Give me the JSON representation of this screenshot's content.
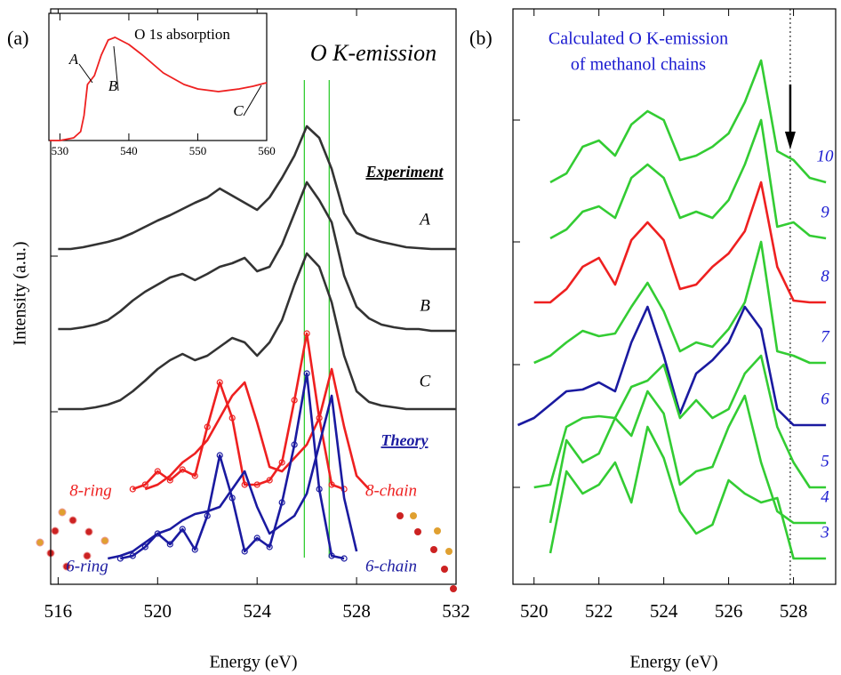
{
  "chart_data": [
    {
      "type": "line",
      "panel_label": "(a)",
      "title": "O K-emission",
      "x_label": "Energy (eV)",
      "y_label": "Intensity (a.u.)",
      "x": [
        516,
        516.5,
        517,
        517.5,
        518,
        518.5,
        519,
        519.5,
        520,
        520.5,
        521,
        521.5,
        522,
        522.5,
        523,
        523.5,
        524,
        524.5,
        525,
        525.5,
        526,
        526.5,
        527,
        527.5,
        528,
        528.5,
        529,
        529.5,
        530,
        530.5,
        531,
        531.5,
        532
      ],
      "xlim": [
        515.7,
        532
      ],
      "xticks": [
        516,
        520,
        524,
        528,
        532
      ],
      "ylim": [
        -27,
        620
      ],
      "yticks": [
        167,
        342,
        515
      ],
      "reference_lines": [
        525.9,
        526.9
      ],
      "reference_color": "#33cc33",
      "group_labels": [
        "Experiment",
        "Theory"
      ],
      "series": [
        {
          "name": "A",
          "color": "#333333",
          "values": [
            350,
            350,
            352,
            355,
            358,
            362,
            368,
            375,
            382,
            388,
            395,
            402,
            408,
            418,
            410,
            402,
            394,
            408,
            430,
            455,
            488,
            475,
            440,
            390,
            368,
            362,
            358,
            355,
            352,
            351,
            350,
            350,
            350
          ]
        },
        {
          "name": "B",
          "color": "#333333",
          "values": [
            260,
            260,
            262,
            265,
            270,
            280,
            292,
            302,
            310,
            318,
            322,
            315,
            322,
            330,
            334,
            340,
            325,
            330,
            355,
            390,
            425,
            405,
            380,
            320,
            285,
            272,
            265,
            262,
            260,
            260,
            258,
            258,
            258
          ]
        },
        {
          "name": "C",
          "color": "#333333",
          "values": [
            170,
            170,
            170,
            172,
            175,
            180,
            190,
            202,
            215,
            225,
            232,
            225,
            230,
            240,
            250,
            245,
            230,
            245,
            270,
            310,
            345,
            330,
            290,
            230,
            190,
            178,
            174,
            172,
            170,
            170,
            170,
            170,
            170
          ]
        },
        {
          "name": "8-ring",
          "color": "#ee2020",
          "marker": "circle",
          "values": [
            null,
            null,
            null,
            null,
            null,
            null,
            80,
            85,
            100,
            90,
            102,
            95,
            150,
            200,
            160,
            85,
            85,
            90,
            110,
            180,
            255,
            160,
            85,
            80,
            null,
            null,
            null,
            null,
            null,
            null,
            null,
            null,
            null
          ]
        },
        {
          "name": "8-chain",
          "color": "#ee2020",
          "values": [
            null,
            null,
            null,
            null,
            null,
            null,
            null,
            80,
            85,
            95,
            110,
            120,
            135,
            160,
            185,
            200,
            155,
            105,
            100,
            115,
            130,
            160,
            215,
            150,
            95,
            80,
            null,
            null,
            null,
            null,
            null,
            null,
            null
          ]
        },
        {
          "name": "6-ring",
          "color": "#1a1aa0",
          "marker": "circle",
          "values": [
            null,
            null,
            null,
            null,
            null,
            2,
            5,
            15,
            30,
            18,
            35,
            12,
            50,
            118,
            70,
            10,
            25,
            15,
            65,
            130,
            210,
            80,
            5,
            2,
            null,
            null,
            null,
            null,
            null,
            null,
            null,
            null,
            null
          ]
        },
        {
          "name": "6-chain",
          "color": "#1a1aa0",
          "values": [
            null,
            null,
            null,
            null,
            2,
            5,
            10,
            20,
            30,
            35,
            45,
            52,
            55,
            60,
            80,
            100,
            60,
            30,
            40,
            50,
            75,
            130,
            185,
            70,
            10,
            null,
            null,
            null,
            null,
            null,
            null,
            null,
            null
          ]
        }
      ]
    },
    {
      "type": "line",
      "title": "O 1s absorption",
      "x": [
        528.5,
        530,
        532,
        533,
        533.5,
        534,
        535,
        536,
        537,
        538,
        540,
        542,
        545,
        548,
        550,
        553,
        556,
        558,
        560
      ],
      "xlim": [
        528.4,
        560
      ],
      "xticks": [
        530,
        540,
        550,
        560
      ],
      "ylim": [
        0,
        143
      ],
      "annotations": [
        "A",
        "B",
        "C"
      ],
      "series": [
        {
          "color": "#ee2020",
          "values": [
            0,
            0,
            3,
            10,
            28,
            63,
            73,
            96,
            113,
            116,
            108,
            96,
            76,
            63,
            58,
            55,
            58,
            61,
            65
          ]
        }
      ]
    },
    {
      "type": "line",
      "panel_label": "(b)",
      "title": "Calculated O K-emission",
      "subtitle": "of methanol chains",
      "x_label": "Energy (eV)",
      "x": [
        519.5,
        520,
        520.5,
        521,
        521.5,
        522,
        522.5,
        523,
        523.5,
        524,
        524.5,
        525,
        525.5,
        526,
        526.5,
        527,
        527.5,
        528,
        528.5,
        529
      ],
      "xlim": [
        519.35,
        529.3
      ],
      "xticks": [
        520,
        522,
        524,
        526,
        528
      ],
      "ylim": [
        -29,
        618
      ],
      "yticks": [
        80,
        218,
        356,
        493
      ],
      "reference_lines": [
        527.9
      ],
      "reference_color": "#000000",
      "series": [
        {
          "name": "10",
          "color": "#33cc33",
          "values": [
            null,
            null,
            423,
            433,
            463,
            470,
            453,
            488,
            503,
            493,
            448,
            453,
            463,
            478,
            513,
            560,
            458,
            448,
            428,
            423
          ]
        },
        {
          "name": "9",
          "color": "#33cc33",
          "values": [
            null,
            null,
            360,
            370,
            390,
            396,
            383,
            428,
            443,
            428,
            383,
            390,
            383,
            403,
            443,
            493,
            373,
            378,
            363,
            360
          ]
        },
        {
          "name": "8",
          "color": "#ee2020",
          "values": [
            null,
            288,
            288,
            303,
            328,
            338,
            308,
            358,
            378,
            358,
            303,
            308,
            328,
            343,
            368,
            423,
            328,
            290,
            288,
            288
          ]
        },
        {
          "name": "7",
          "color": "#33cc33",
          "values": [
            null,
            220,
            228,
            243,
            256,
            250,
            253,
            283,
            310,
            278,
            233,
            243,
            238,
            258,
            288,
            356,
            233,
            228,
            220,
            220
          ]
        },
        {
          "name": "6",
          "color": "#1a1aa0",
          "values": [
            150,
            158,
            173,
            188,
            190,
            198,
            188,
            243,
            283,
            228,
            163,
            208,
            223,
            243,
            283,
            258,
            168,
            150,
            150,
            150
          ]
        },
        {
          "name": "5",
          "color": "#33cc33",
          "values": [
            null,
            80,
            83,
            148,
            158,
            160,
            158,
            193,
            200,
            218,
            158,
            178,
            158,
            168,
            208,
            228,
            148,
            108,
            80,
            80
          ]
        },
        {
          "name": "4",
          "color": "#33cc33",
          "values": [
            null,
            null,
            40,
            133,
            108,
            118,
            158,
            138,
            188,
            163,
            83,
            98,
            103,
            148,
            183,
            108,
            53,
            40,
            40,
            40
          ]
        },
        {
          "name": "3",
          "color": "#33cc33",
          "values": [
            null,
            null,
            6,
            98,
            73,
            83,
            108,
            63,
            148,
            113,
            53,
            28,
            38,
            88,
            73,
            63,
            68,
            0,
            0,
            0
          ]
        }
      ]
    }
  ]
}
